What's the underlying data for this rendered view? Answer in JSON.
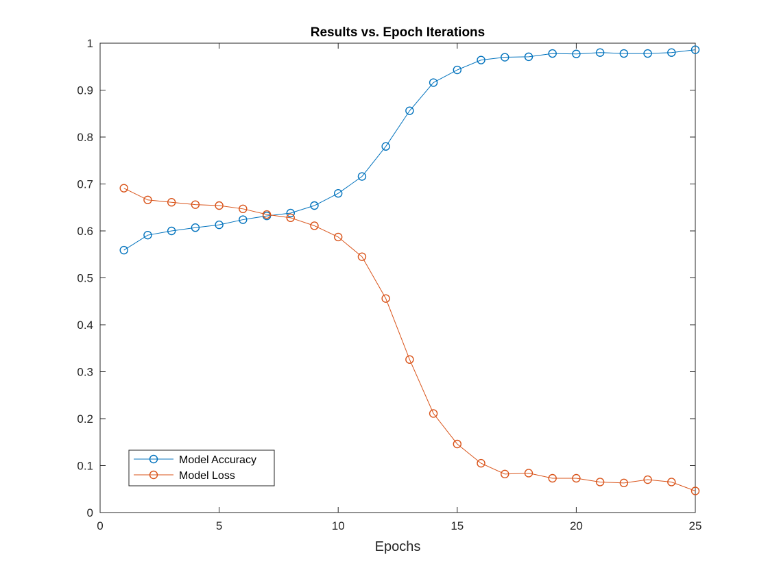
{
  "chart_data": {
    "type": "line",
    "title": "Results vs. Epoch Iterations",
    "xlabel": "Epochs",
    "ylabel": "",
    "xlim": [
      0,
      25
    ],
    "ylim": [
      0,
      1
    ],
    "xticks": [
      0,
      5,
      10,
      15,
      20,
      25
    ],
    "yticks": [
      0,
      0.1,
      0.2,
      0.3,
      0.4,
      0.5,
      0.6,
      0.7,
      0.8,
      0.9,
      1
    ],
    "grid": false,
    "legend_position": "bottom-left",
    "marker": "circle",
    "x": [
      1,
      2,
      3,
      4,
      5,
      6,
      7,
      8,
      9,
      10,
      11,
      12,
      13,
      14,
      15,
      16,
      17,
      18,
      19,
      20,
      21,
      22,
      23,
      24,
      25
    ],
    "series": [
      {
        "name": "Model Accuracy",
        "color": "#0072BD",
        "values": [
          0.559,
          0.591,
          0.6,
          0.607,
          0.613,
          0.624,
          0.632,
          0.638,
          0.654,
          0.68,
          0.716,
          0.78,
          0.856,
          0.916,
          0.943,
          0.964,
          0.97,
          0.971,
          0.978,
          0.977,
          0.98,
          0.978,
          0.978,
          0.98,
          0.986
        ]
      },
      {
        "name": "Model Loss",
        "color": "#D95319",
        "values": [
          0.691,
          0.666,
          0.661,
          0.656,
          0.654,
          0.647,
          0.635,
          0.628,
          0.611,
          0.587,
          0.545,
          0.456,
          0.326,
          0.211,
          0.146,
          0.105,
          0.082,
          0.084,
          0.073,
          0.073,
          0.065,
          0.063,
          0.07,
          0.065,
          0.046
        ]
      }
    ]
  }
}
